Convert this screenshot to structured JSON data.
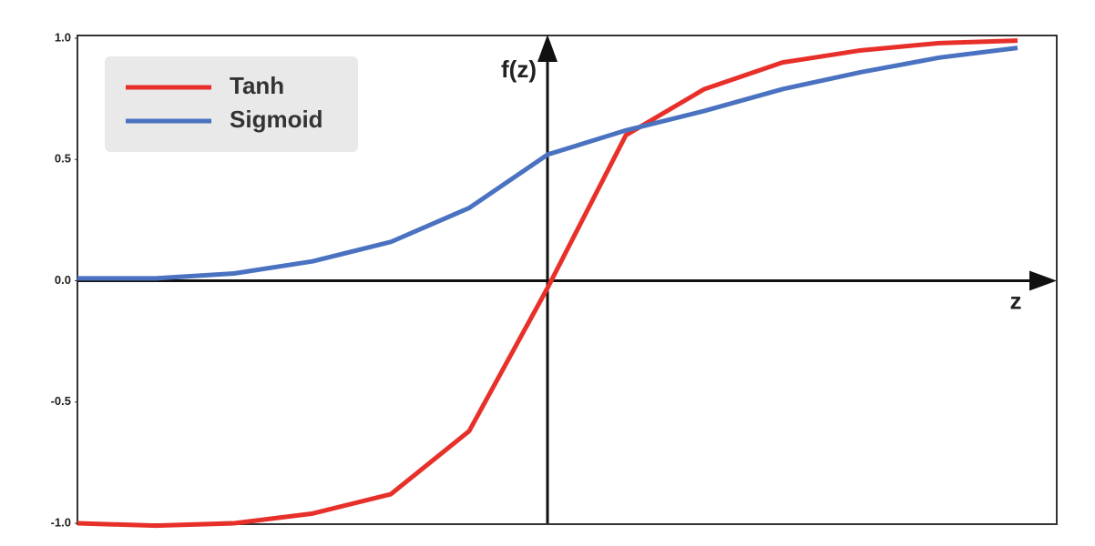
{
  "chart_data": {
    "type": "line",
    "x": [
      -3,
      -2.5,
      -2,
      -1.5,
      -1,
      -0.5,
      0,
      0.5,
      1,
      1.5,
      2,
      2.5,
      3
    ],
    "series": [
      {
        "name": "Tanh",
        "color": "#e8302a",
        "values": [
          -1.0,
          -1.01,
          -1.0,
          -0.96,
          -0.88,
          -0.62,
          -0.03,
          0.6,
          0.79,
          0.9,
          0.95,
          0.98,
          0.99
        ]
      },
      {
        "name": "Sigmoid",
        "color": "#4a72c0",
        "values": [
          0.01,
          0.01,
          0.03,
          0.08,
          0.16,
          0.3,
          0.52,
          0.62,
          0.7,
          0.79,
          0.86,
          0.92,
          0.96
        ]
      }
    ],
    "xlim": [
      -3,
      3.25
    ],
    "ylim": [
      -1,
      1
    ],
    "yticks": [
      {
        "value": -1,
        "label": "-1.0"
      },
      -0.5,
      {
        "value": 0,
        "label": "0.0"
      },
      0.5,
      {
        "value": 1,
        "label": "1.0"
      }
    ],
    "xlabel": "z",
    "ylabel": "f(z)",
    "legend": "upper-left"
  }
}
